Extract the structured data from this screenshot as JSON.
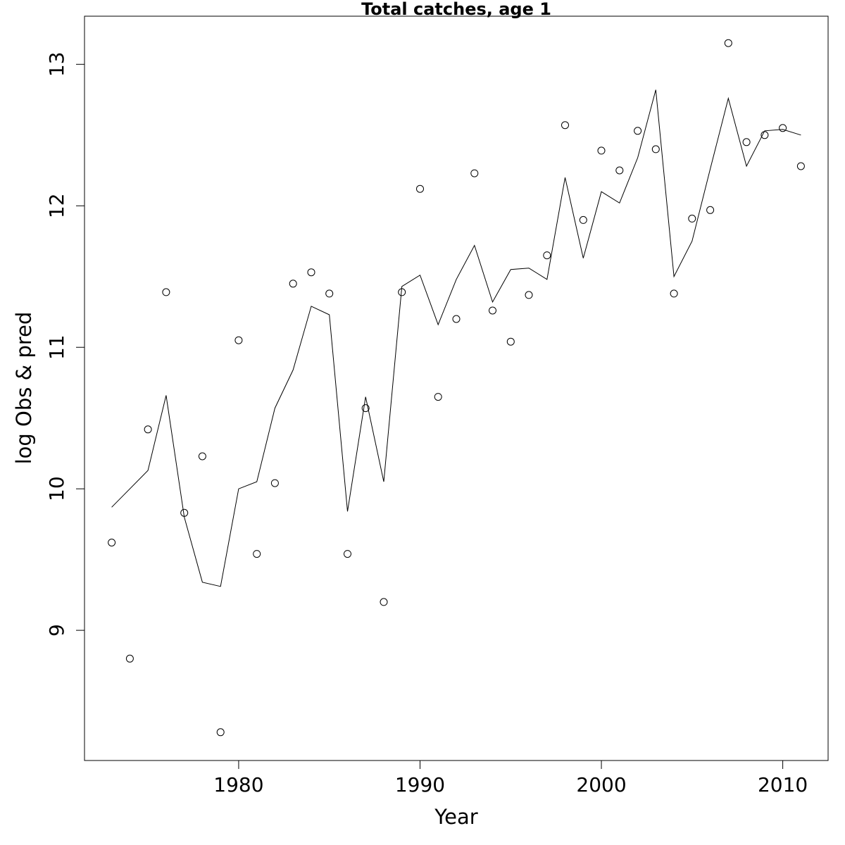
{
  "chart_data": {
    "type": "line",
    "title": "Total catches, age 1",
    "xlabel": "Year",
    "ylabel": "log Obs & pred",
    "xlim": [
      1971.5,
      2012.5
    ],
    "ylim": [
      8.08,
      13.34
    ],
    "x_ticks": [
      "1980",
      "1990",
      "2000",
      "2010"
    ],
    "y_ticks": [
      "9",
      "10",
      "11",
      "12",
      "13"
    ],
    "grid": false,
    "legend": "none",
    "series": [
      {
        "style": "points",
        "x": [
          1973,
          1974,
          1975,
          1976,
          1977,
          1978,
          1979,
          1980,
          1981,
          1982,
          1983,
          1984,
          1985,
          1986,
          1987,
          1988,
          1989,
          1990,
          1991,
          1992,
          1993,
          1994,
          1995,
          1996,
          1997,
          1998,
          1999,
          2000,
          2001,
          2002,
          2003,
          2004,
          2005,
          2006,
          2007,
          2008,
          2009,
          2010,
          2011
        ],
        "values": [
          9.62,
          8.8,
          10.42,
          11.39,
          9.83,
          10.23,
          8.28,
          11.05,
          9.54,
          10.04,
          11.45,
          11.53,
          11.38,
          9.54,
          10.57,
          9.2,
          11.39,
          12.12,
          10.65,
          11.2,
          12.23,
          11.26,
          11.04,
          11.37,
          11.65,
          12.57,
          11.9,
          12.39,
          12.25,
          12.53,
          12.4,
          11.38,
          11.91,
          11.97,
          13.15,
          12.45,
          12.5,
          12.55,
          12.28
        ]
      },
      {
        "style": "line",
        "x": [
          1973,
          1974,
          1975,
          1976,
          1977,
          1978,
          1979,
          1980,
          1981,
          1982,
          1983,
          1984,
          1985,
          1986,
          1987,
          1988,
          1989,
          1990,
          1991,
          1992,
          1993,
          1994,
          1995,
          1996,
          1997,
          1998,
          1999,
          2000,
          2001,
          2002,
          2003,
          2004,
          2005,
          2006,
          2007,
          2008,
          2009,
          2010,
          2011
        ],
        "values": [
          9.87,
          10.0,
          10.13,
          10.66,
          9.8,
          9.34,
          9.31,
          10.0,
          10.05,
          10.57,
          10.84,
          11.29,
          11.23,
          9.84,
          10.65,
          10.05,
          11.43,
          11.51,
          11.16,
          11.48,
          11.72,
          11.32,
          11.55,
          11.56,
          11.48,
          12.2,
          11.63,
          12.1,
          12.02,
          12.34,
          12.82,
          11.5,
          11.75,
          12.26,
          12.76,
          12.28,
          12.53,
          12.54,
          12.5
        ]
      }
    ]
  }
}
